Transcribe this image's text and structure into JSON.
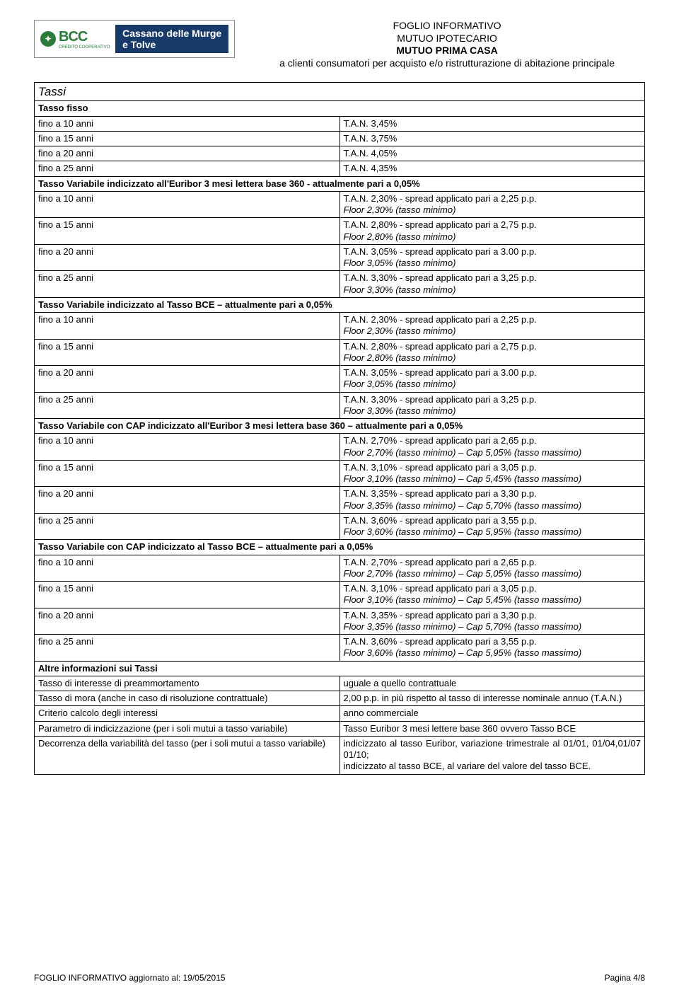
{
  "logo": {
    "bcc": "BCC",
    "sub": "CREDITO COOPERATIVO",
    "brand_line1": "Cassano delle Murge",
    "brand_line2": "e Tolve"
  },
  "header": {
    "l1": "FOGLIO INFORMATIVO",
    "l2": "MUTUO IPOTECARIO",
    "l3": "MUTUO PRIMA CASA",
    "l4": "a clienti consumatori per acquisto e/o ristrutturazione di abitazione principale"
  },
  "sec_tassi": "Tassi",
  "tasso_fisso": "Tasso fisso",
  "rows_fisso": [
    {
      "l": "fino a 10 anni",
      "r": "T.A.N. 3,45%"
    },
    {
      "l": "fino a 15 anni",
      "r": "T.A.N. 3,75%"
    },
    {
      "l": "fino a 20 anni",
      "r": "T.A.N. 4,05%"
    },
    {
      "l": "fino a 25 anni",
      "r": "T.A.N. 4,35%"
    }
  ],
  "hdr_var_eur": "Tasso Variabile indicizzato all'Euribor  3 mesi lettera base 360 - attualmente pari a 0,05%",
  "rows_var_eur": [
    {
      "l": "fino a 10 anni",
      "r1": "T.A.N. 2,30% - spread applicato pari a 2,25 p.p.",
      "r2": "Floor 2,30% (tasso minimo)"
    },
    {
      "l": "fino a 15 anni",
      "r1": "T.A.N. 2,80% - spread applicato pari a 2,75 p.p.",
      "r2": "Floor 2,80% (tasso minimo)"
    },
    {
      "l": "fino a 20 anni",
      "r1": "T.A.N. 3,05% - spread applicato pari a 3.00 p.p.",
      "r2": "Floor 3,05% (tasso minimo)"
    },
    {
      "l": "fino a 25 anni",
      "r1": "T.A.N. 3,30% - spread applicato pari a 3,25 p.p.",
      "r2": "Floor 3,30% (tasso minimo)"
    }
  ],
  "hdr_var_bce": "Tasso Variabile indicizzato al Tasso BCE – attualmente pari a 0,05%",
  "rows_var_bce": [
    {
      "l": "fino a 10 anni",
      "r1": "T.A.N. 2,30% - spread applicato pari a 2,25 p.p.",
      "r2": "Floor 2,30% (tasso minimo)"
    },
    {
      "l": "fino a 15 anni",
      "r1": "T.A.N. 2,80% - spread applicato pari a 2,75 p.p.",
      "r2": "Floor 2,80% (tasso minimo)"
    },
    {
      "l": "fino a 20 anni",
      "r1": "T.A.N. 3,05% - spread applicato pari a 3.00 p.p.",
      "r2": "Floor 3,05% (tasso minimo)"
    },
    {
      "l": "fino a 25 anni",
      "r1": "T.A.N. 3,30% - spread applicato pari a 3,25 p.p.",
      "r2": "Floor 3,30% (tasso minimo)"
    }
  ],
  "hdr_cap_eur": "Tasso Variabile con CAP indicizzato all'Euribor 3 mesi lettera base 360 – attualmente pari a 0,05%",
  "rows_cap_eur": [
    {
      "l": "fino a 10 anni",
      "r1": "T.A.N. 2,70% - spread applicato pari a 2,65 p.p.",
      "r2": "Floor 2,70% (tasso minimo) – Cap 5,05% (tasso massimo)"
    },
    {
      "l": "fino a 15 anni",
      "r1": "T.A.N. 3,10% - spread applicato pari a 3,05 p.p.",
      "r2": "Floor 3,10% (tasso minimo) – Cap 5,45% (tasso massimo)"
    },
    {
      "l": "fino a 20 anni",
      "r1": "T.A.N. 3,35% - spread applicato pari a 3,30 p.p.",
      "r2": "Floor 3,35% (tasso minimo) – Cap 5,70% (tasso massimo)"
    },
    {
      "l": "fino a 25 anni",
      "r1": "T.A.N. 3,60% - spread applicato pari a 3,55 p.p.",
      "r2": "Floor 3,60% (tasso minimo) – Cap 5,95% (tasso massimo)"
    }
  ],
  "hdr_cap_bce": "Tasso Variabile con CAP indicizzato al Tasso BCE – attualmente pari a 0,05%",
  "rows_cap_bce": [
    {
      "l": "fino a 10 anni",
      "r1": "T.A.N. 2,70% - spread applicato pari a 2,65 p.p.",
      "r2": "Floor 2,70% (tasso minimo) – Cap 5,05% (tasso massimo)"
    },
    {
      "l": "fino a 15 anni",
      "r1": "T.A.N. 3,10% - spread applicato pari a 3,05 p.p.",
      "r2": "Floor 3,10% (tasso minimo) – Cap 5,45% (tasso massimo)"
    },
    {
      "l": "fino a 20 anni",
      "r1": "T.A.N. 3,35% - spread applicato pari a 3,30 p.p.",
      "r2": "Floor 3,35% (tasso minimo) – Cap 5,70% (tasso massimo)"
    },
    {
      "l": "fino a 25 anni",
      "r1": "T.A.N. 3,60% - spread applicato pari a 3,55 p.p.",
      "r2": "Floor 3,60% (tasso minimo) – Cap 5,95% (tasso massimo)"
    }
  ],
  "hdr_altre": "Altre informazioni sui Tassi",
  "rows_altre": [
    {
      "l": "Tasso di interesse di preammortamento",
      "r": "uguale a quello contrattuale"
    },
    {
      "l": "Tasso di mora (anche in caso di risoluzione contrattuale)",
      "r": "2,00 p.p. in più rispetto al tasso di interesse nominale annuo (T.A.N.)"
    },
    {
      "l": "Criterio calcolo degli interessi",
      "r": "anno commerciale"
    },
    {
      "l": "Parametro di indicizzazione (per i soli mutui a tasso variabile)",
      "r": "Tasso Euribor 3 mesi lettere base 360 ovvero Tasso BCE"
    },
    {
      "l": "Decorrenza della variabilità del tasso (per i soli mutui a tasso variabile)",
      "r": "indicizzato al tasso Euribor, variazione trimestrale al 01/01, 01/04,01/07 01/10;\nindicizzato al tasso BCE, al variare del valore del tasso BCE."
    }
  ],
  "footer": {
    "left": "FOGLIO INFORMATIVO aggiornato al: 19/05/2015",
    "right": "Pagina 4/8"
  }
}
